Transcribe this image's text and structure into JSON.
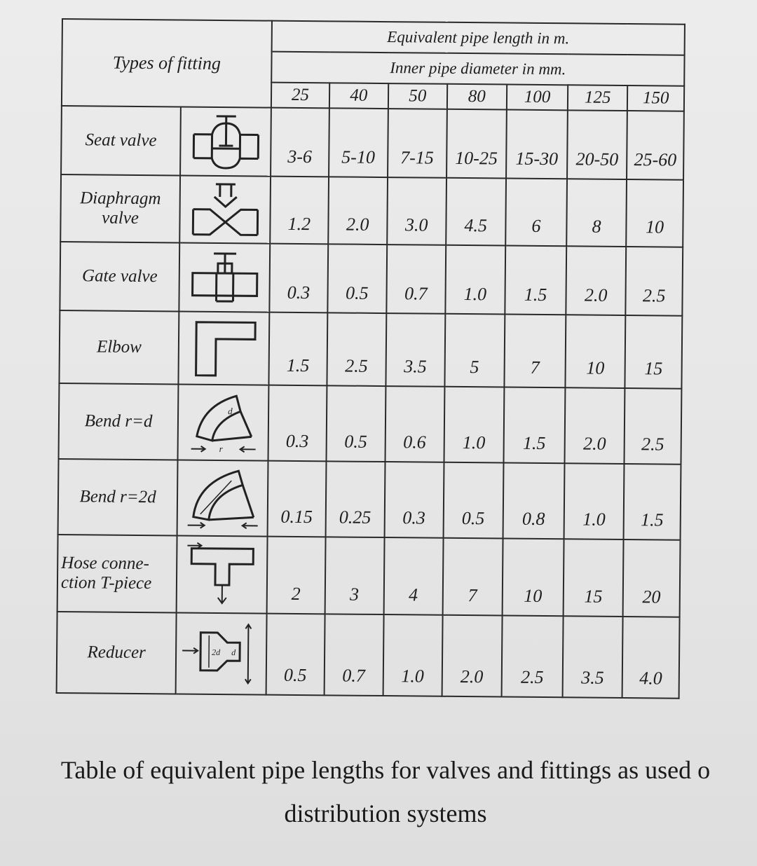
{
  "table": {
    "header": {
      "types_label": "Types of fitting",
      "equiv_label": "Equivalent pipe length in m.",
      "diam_label": "Inner pipe diameter in mm.",
      "sizes": [
        "25",
        "40",
        "50",
        "80",
        "100",
        "125",
        "150"
      ]
    },
    "rows": [
      {
        "name": "Seat valve",
        "icon": "seat-valve-icon",
        "values": [
          "3-6",
          "5-10",
          "7-15",
          "10-25",
          "15-30",
          "20-50",
          "25-60"
        ]
      },
      {
        "name": "Diaphragm valve",
        "icon": "diaphragm-valve-icon",
        "values": [
          "1.2",
          "2.0",
          "3.0",
          "4.5",
          "6",
          "8",
          "10"
        ]
      },
      {
        "name": "Gate valve",
        "icon": "gate-valve-icon",
        "values": [
          "0.3",
          "0.5",
          "0.7",
          "1.0",
          "1.5",
          "2.0",
          "2.5"
        ]
      },
      {
        "name": "Elbow",
        "icon": "elbow-icon",
        "values": [
          "1.5",
          "2.5",
          "3.5",
          "5",
          "7",
          "10",
          "15"
        ]
      },
      {
        "name": "Bend r=d",
        "icon": "bend-r-d-icon",
        "values": [
          "0.3",
          "0.5",
          "0.6",
          "1.0",
          "1.5",
          "2.0",
          "2.5"
        ]
      },
      {
        "name": "Bend r=2d",
        "icon": "bend-r-2d-icon",
        "values": [
          "0.15",
          "0.25",
          "0.3",
          "0.5",
          "0.8",
          "1.0",
          "1.5"
        ]
      },
      {
        "name": "Hose conne-ction T-piece",
        "icon": "t-piece-icon",
        "values": [
          "2",
          "3",
          "4",
          "7",
          "10",
          "15",
          "20"
        ]
      },
      {
        "name": "Reducer",
        "icon": "reducer-icon",
        "values": [
          "0.5",
          "0.7",
          "1.0",
          "2.0",
          "2.5",
          "3.5",
          "4.0"
        ]
      }
    ],
    "name_lines": {
      "diaphragm": [
        "Diaphragm",
        "valve"
      ],
      "hose": [
        "Hose conne-",
        "ction T-piece"
      ]
    },
    "symbol_marks": {
      "bend_d": "d",
      "bend_r": "r",
      "reducer_2d": "2d",
      "reducer_d": "d"
    }
  },
  "caption": {
    "line1": "Table of equivalent pipe lengths for valves and fittings as used o",
    "line2": "distribution systems"
  }
}
